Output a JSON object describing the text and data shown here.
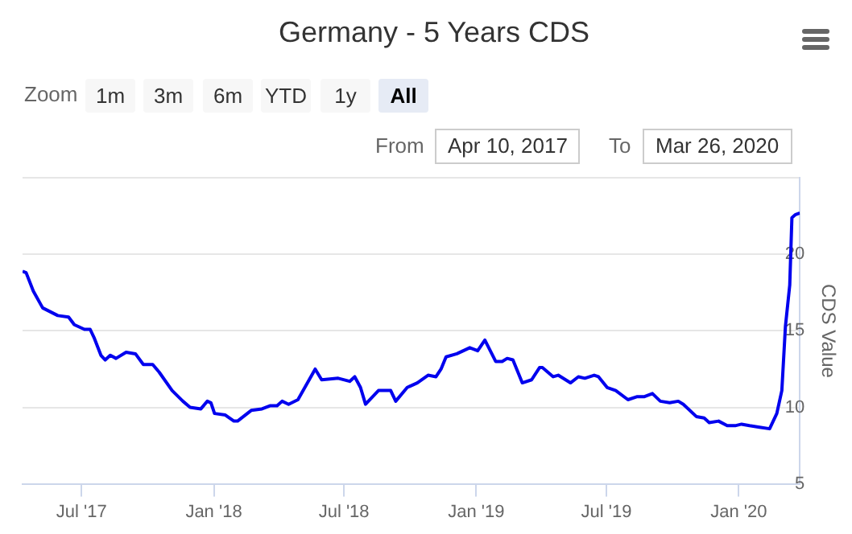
{
  "chart_data": {
    "type": "line",
    "title": "Germany - 5 Years CDS",
    "ylabel": "CDS Value",
    "annotations": [
      "Zoom",
      "1m",
      "3m",
      "6m",
      "YTD",
      "1y",
      "All",
      "From",
      "Apr 10, 2017",
      "To",
      "Mar 26, 2020"
    ],
    "x": [
      "2017-04-10",
      "2017-04-15",
      "2017-04-25",
      "2017-05-08",
      "2017-05-29",
      "2017-06-13",
      "2017-06-21",
      "2017-07-05",
      "2017-07-13",
      "2017-07-19",
      "2017-07-28",
      "2017-08-03",
      "2017-08-10",
      "2017-08-18",
      "2017-09-01",
      "2017-09-14",
      "2017-09-25",
      "2017-10-08",
      "2017-10-17",
      "2017-11-04",
      "2017-11-19",
      "2017-11-29",
      "2017-12-14",
      "2017-12-23",
      "2017-12-28",
      "2018-01-02",
      "2018-01-17",
      "2018-01-29",
      "2018-02-03",
      "2018-02-22",
      "2018-03-09",
      "2018-03-20",
      "2018-03-30",
      "2018-04-06",
      "2018-04-15",
      "2018-04-28",
      "2018-05-22",
      "2018-05-31",
      "2018-06-23",
      "2018-07-09",
      "2018-07-16",
      "2018-07-24",
      "2018-07-31",
      "2018-08-18",
      "2018-09-04",
      "2018-09-11",
      "2018-09-27",
      "2018-10-11",
      "2018-10-26",
      "2018-11-06",
      "2018-11-13",
      "2018-11-20",
      "2018-12-05",
      "2018-12-23",
      "2019-01-03",
      "2019-01-13",
      "2019-01-28",
      "2019-02-06",
      "2019-02-13",
      "2019-02-21",
      "2019-03-06",
      "2019-03-19",
      "2019-03-30",
      "2019-04-03",
      "2019-04-18",
      "2019-04-25",
      "2019-05-12",
      "2019-05-23",
      "2019-06-01",
      "2019-06-14",
      "2019-06-20",
      "2019-07-02",
      "2019-07-14",
      "2019-07-31",
      "2019-08-13",
      "2019-08-23",
      "2019-09-03",
      "2019-09-14",
      "2019-09-27",
      "2019-10-09",
      "2019-10-16",
      "2019-11-03",
      "2019-11-14",
      "2019-11-21",
      "2019-12-04",
      "2019-12-16",
      "2019-12-27",
      "2020-01-05",
      "2020-01-16",
      "2020-01-30",
      "2020-02-13",
      "2020-02-23",
      "2020-03-01",
      "2020-03-06",
      "2020-03-12",
      "2020-03-15",
      "2020-03-20",
      "2020-03-26"
    ],
    "values": [
      18.9,
      18.8,
      17.6,
      16.5,
      16.0,
      15.9,
      15.4,
      15.1,
      15.1,
      14.5,
      13.4,
      13.1,
      13.4,
      13.2,
      13.6,
      13.5,
      12.8,
      12.8,
      12.3,
      11.1,
      10.4,
      10.0,
      9.9,
      10.4,
      10.3,
      9.6,
      9.5,
      9.1,
      9.1,
      9.8,
      9.9,
      10.1,
      10.1,
      10.4,
      10.2,
      10.5,
      12.5,
      11.8,
      11.9,
      11.7,
      12.0,
      11.3,
      10.2,
      11.1,
      11.1,
      10.4,
      11.3,
      11.6,
      12.1,
      12.0,
      12.5,
      13.3,
      13.5,
      13.9,
      13.7,
      14.4,
      13.0,
      13.0,
      13.2,
      13.1,
      11.6,
      11.8,
      12.6,
      12.6,
      12.0,
      12.1,
      11.6,
      12.0,
      11.9,
      12.1,
      12.0,
      11.3,
      11.1,
      10.5,
      10.7,
      10.7,
      10.9,
      10.4,
      10.3,
      10.4,
      10.2,
      9.4,
      9.3,
      9.0,
      9.1,
      8.8,
      8.8,
      8.9,
      8.8,
      8.7,
      8.6,
      9.6,
      11.1,
      15.3,
      18.0,
      22.4,
      22.6,
      22.7
    ],
    "color": "#0000ee",
    "xlim": [
      "2017-04-10",
      "2020-03-26"
    ],
    "xticks": [
      {
        "value": "2017-07",
        "label": "Jul '17"
      },
      {
        "value": "2018-01",
        "label": "Jan '18"
      },
      {
        "value": "2018-07",
        "label": "Jul '18"
      },
      {
        "value": "2019-01",
        "label": "Jan '19"
      },
      {
        "value": "2019-07",
        "label": "Jul '19"
      },
      {
        "value": "2020-01",
        "label": "Jan '20"
      }
    ],
    "ylim": [
      5,
      25
    ],
    "yticks": [
      5,
      10,
      15,
      20,
      {
        "value": 25,
        "label": null
      }
    ],
    "grid": "y",
    "legend": false,
    "marker": "none",
    "line_style": "solid"
  }
}
